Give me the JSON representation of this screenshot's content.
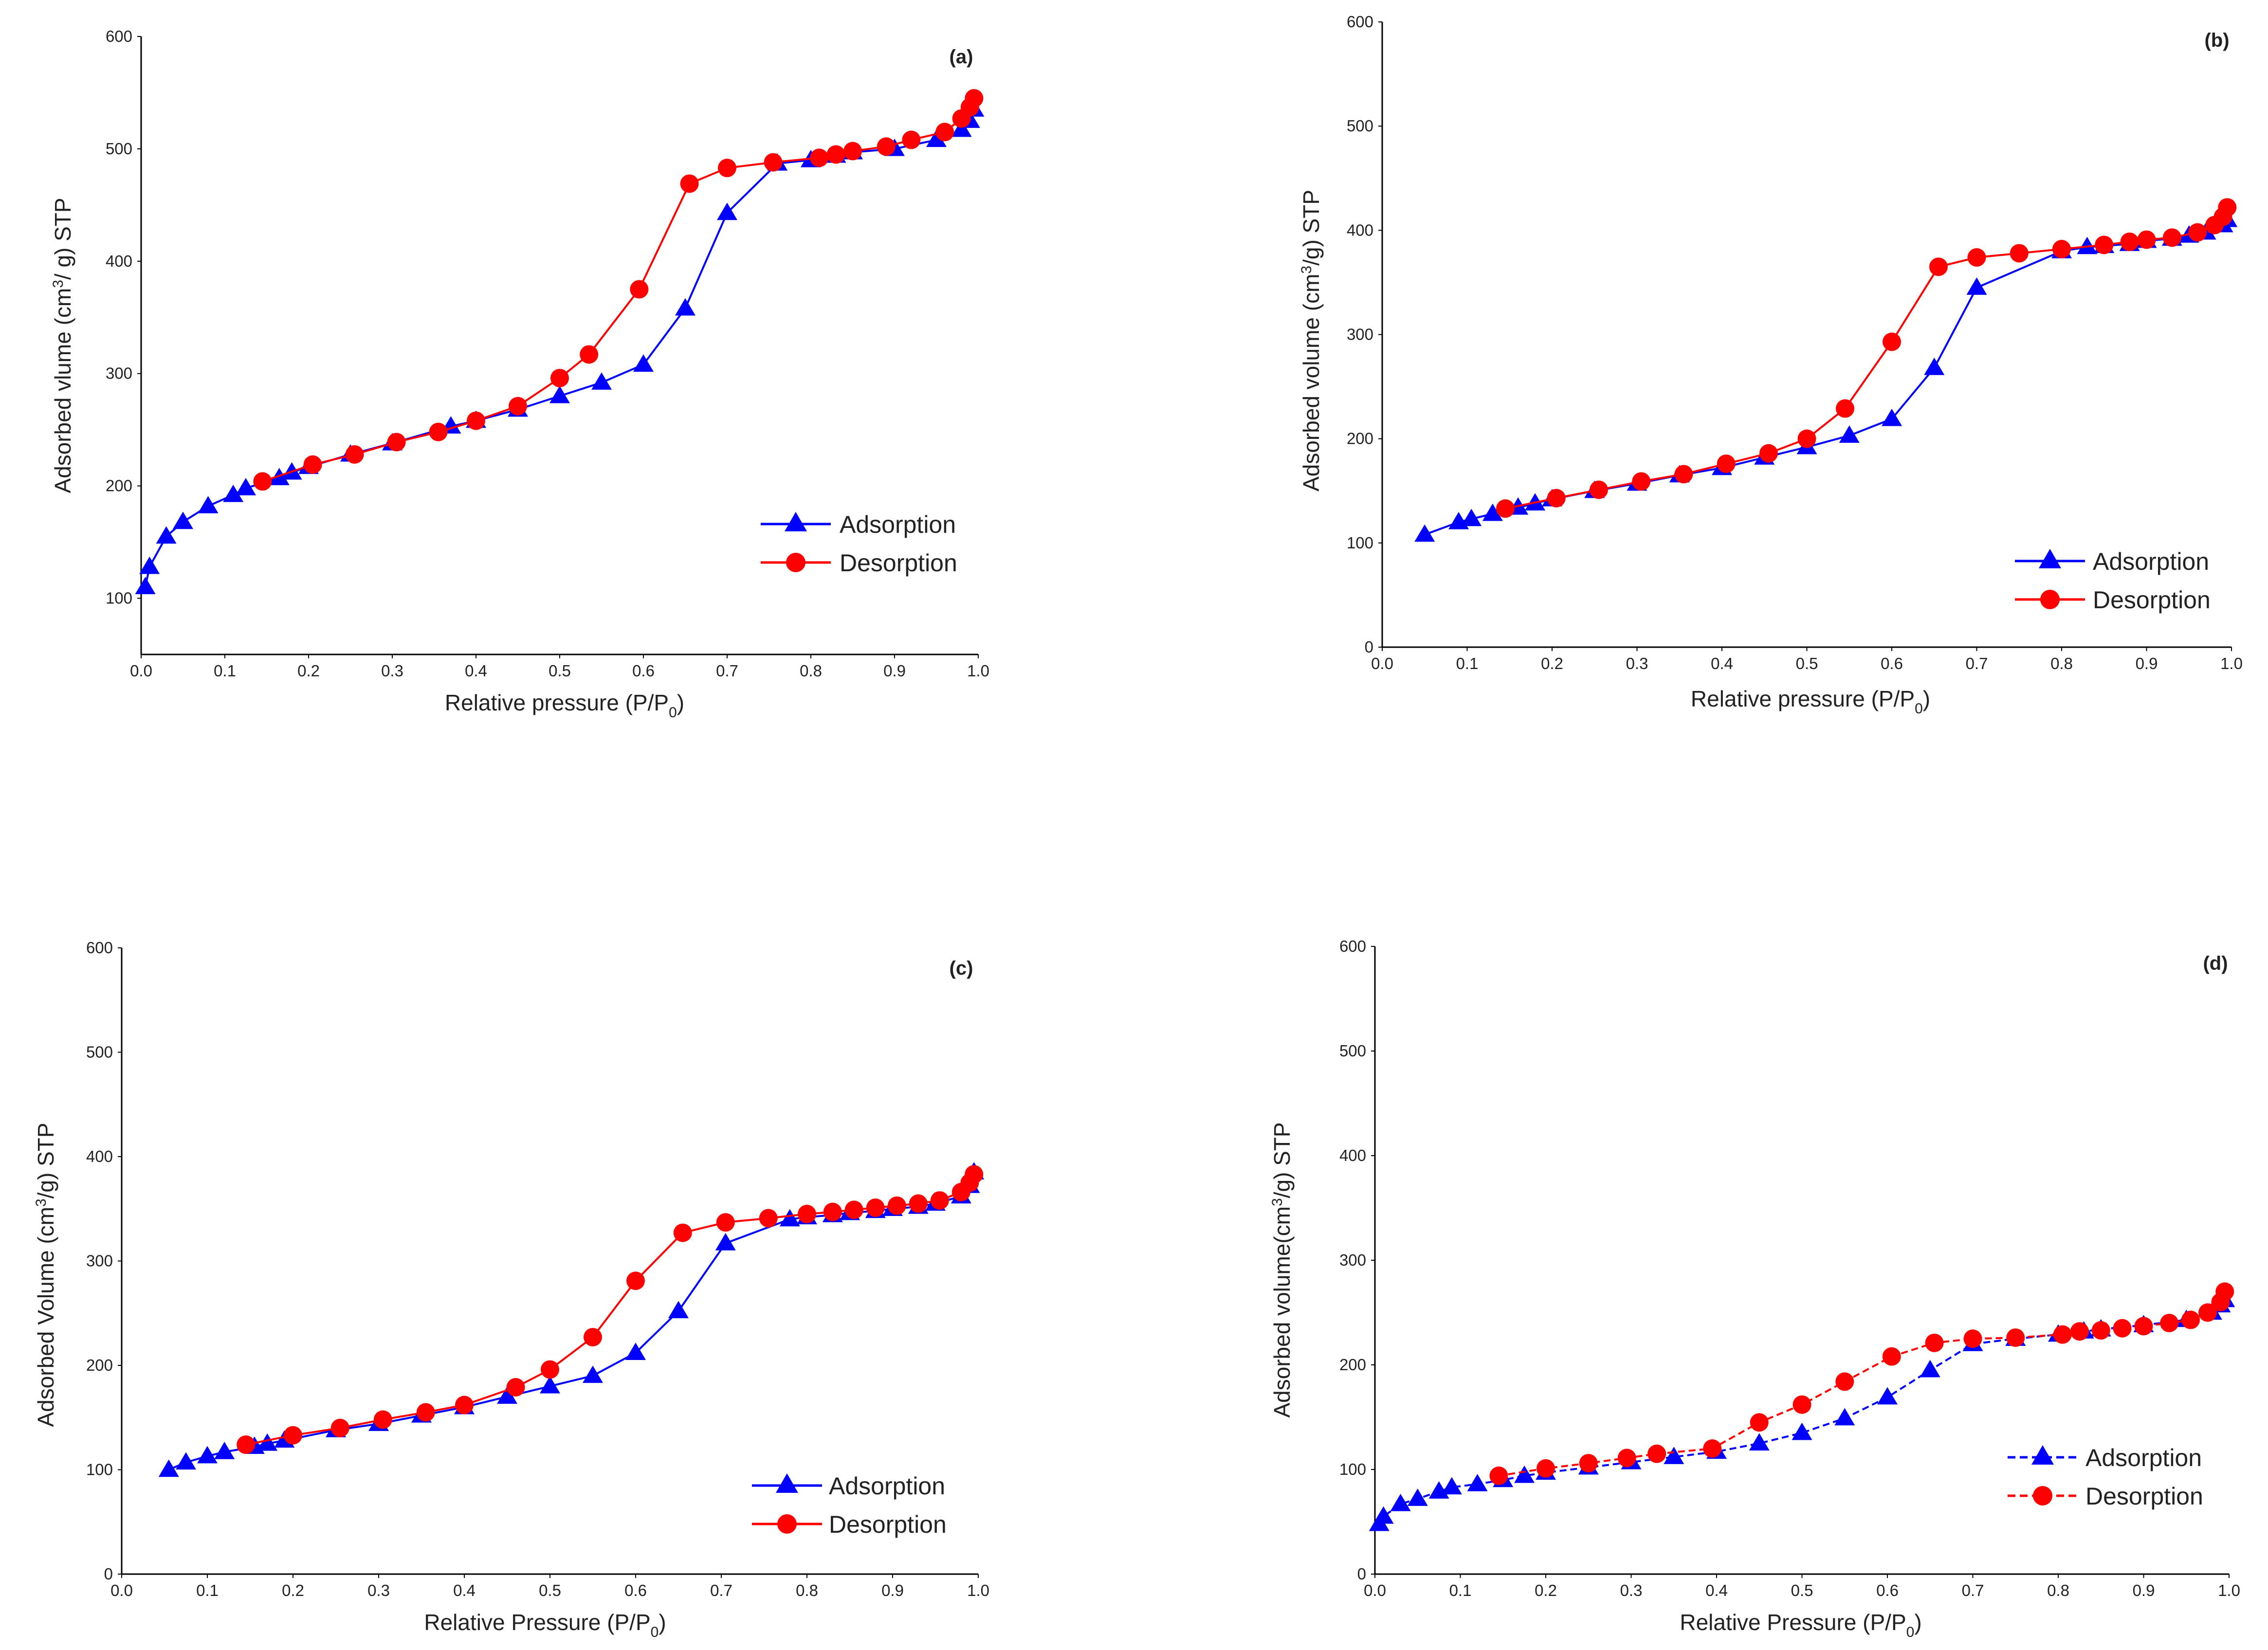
{
  "colors": {
    "adsorption": "#0000ff",
    "desorption": "#ff0000",
    "axis": "#000000"
  },
  "chart_data": [
    {
      "type": "line",
      "panel_label": "(a)",
      "xlabel": "Relative pressure (P/P",
      "xlabel_sub": "0",
      "xlabel_close": ")",
      "ylabel": "Adsorbed vlume (cm",
      "ylabel_sup": "3",
      "ylabel_rest": "/ g) STP",
      "xlim": [
        0,
        1
      ],
      "ylim": [
        50,
        600
      ],
      "xticks": [
        "0.0",
        "0.1",
        "0.2",
        "0.3",
        "0.4",
        "0.5",
        "0.6",
        "0.7",
        "0.8",
        "0.9",
        "1.0"
      ],
      "yticks": [
        "100",
        "200",
        "300",
        "400",
        "500",
        "600"
      ],
      "legend_position": "lower-right",
      "series": [
        {
          "name": "Adsorption",
          "marker": "triangle",
          "x": [
            0.005,
            0.01,
            0.03,
            0.05,
            0.08,
            0.11,
            0.125,
            0.165,
            0.18,
            0.2,
            0.25,
            0.3,
            0.37,
            0.4,
            0.45,
            0.5,
            0.55,
            0.6,
            0.65,
            0.7,
            0.76,
            0.8,
            0.83,
            0.85,
            0.9,
            0.95,
            0.98,
            0.99,
            0.995
          ],
          "y": [
            110,
            128,
            155,
            168,
            182,
            192,
            198,
            207,
            212,
            217,
            228,
            238,
            253,
            258,
            268,
            280,
            292,
            308,
            358,
            443,
            487,
            490,
            494,
            497,
            500,
            508,
            517,
            525,
            535
          ]
        },
        {
          "name": "Desorption",
          "marker": "circle",
          "x": [
            0.995,
            0.99,
            0.98,
            0.96,
            0.92,
            0.89,
            0.85,
            0.83,
            0.81,
            0.755,
            0.7,
            0.655,
            0.595,
            0.535,
            0.5,
            0.45,
            0.4,
            0.355,
            0.305,
            0.255,
            0.205,
            0.145
          ],
          "y": [
            545,
            537,
            527,
            515,
            508,
            502,
            498,
            495,
            492,
            488,
            483,
            469,
            375,
            317,
            296,
            271,
            258,
            248,
            239,
            228,
            219,
            204
          ]
        }
      ]
    },
    {
      "type": "line",
      "panel_label": "(b)",
      "xlabel": "Relative pressure (P/P",
      "xlabel_sub": "0",
      "xlabel_close": ")",
      "ylabel": "Adsorbed volume (cm",
      "ylabel_sup": "3",
      "ylabel_rest": "/g) STP",
      "xlim": [
        0,
        1
      ],
      "ylim": [
        0,
        600
      ],
      "xticks": [
        "0.0",
        "0.1",
        "0.2",
        "0.3",
        "0.4",
        "0.5",
        "0.6",
        "0.7",
        "0.8",
        "0.9",
        "1.0"
      ],
      "yticks": [
        "0",
        "100",
        "200",
        "300",
        "400",
        "500",
        "600"
      ],
      "legend_position": "lower-right",
      "series": [
        {
          "name": "Adsorption",
          "marker": "triangle",
          "x": [
            0.05,
            0.09,
            0.105,
            0.13,
            0.16,
            0.18,
            0.2,
            0.25,
            0.3,
            0.35,
            0.4,
            0.45,
            0.5,
            0.55,
            0.6,
            0.65,
            0.7,
            0.8,
            0.83,
            0.85,
            0.88,
            0.9,
            0.93,
            0.95,
            0.97,
            0.99,
            0.995
          ],
          "y": [
            108,
            120,
            123,
            128,
            134,
            138,
            142,
            150,
            157,
            165,
            172,
            182,
            192,
            203,
            219,
            268,
            345,
            380,
            384,
            385,
            387,
            390,
            392,
            395,
            398,
            405,
            410
          ]
        },
        {
          "name": "Desorption",
          "marker": "circle",
          "x": [
            0.995,
            0.99,
            0.98,
            0.96,
            0.93,
            0.9,
            0.88,
            0.85,
            0.8,
            0.75,
            0.7,
            0.655,
            0.6,
            0.545,
            0.5,
            0.455,
            0.405,
            0.355,
            0.305,
            0.255,
            0.205,
            0.145
          ],
          "y": [
            422,
            413,
            405,
            398,
            393,
            391,
            389,
            386,
            382,
            378,
            374,
            365,
            293,
            229,
            200,
            186,
            176,
            166,
            159,
            151,
            143,
            133
          ]
        }
      ]
    },
    {
      "type": "line",
      "panel_label": "(c)",
      "xlabel": "Relative Pressure (P/P",
      "xlabel_sub": "0",
      "xlabel_close": ")",
      "ylabel": "Adsorbed Volume (cm",
      "ylabel_sup": "3",
      "ylabel_rest": "/g) STP",
      "xlim": [
        0,
        1
      ],
      "ylim": [
        0,
        600
      ],
      "xticks": [
        "0.0",
        "0.1",
        "0.2",
        "0.3",
        "0.4",
        "0.5",
        "0.6",
        "0.7",
        "0.8",
        "0.9",
        "1.0"
      ],
      "yticks": [
        "0",
        "100",
        "200",
        "300",
        "400",
        "500",
        "600"
      ],
      "legend_position": "lower-right",
      "series": [
        {
          "name": "Adsorption",
          "marker": "triangle",
          "x": [
            0.055,
            0.075,
            0.1,
            0.12,
            0.155,
            0.17,
            0.19,
            0.25,
            0.3,
            0.35,
            0.4,
            0.45,
            0.5,
            0.55,
            0.6,
            0.65,
            0.705,
            0.78,
            0.8,
            0.83,
            0.85,
            0.88,
            0.9,
            0.93,
            0.95,
            0.98,
            0.99,
            0.995
          ],
          "y": [
            100,
            107,
            113,
            117,
            122,
            125,
            128,
            138,
            144,
            152,
            160,
            170,
            180,
            190,
            212,
            252,
            317,
            340,
            342,
            344,
            346,
            348,
            350,
            352,
            355,
            362,
            372,
            385
          ]
        },
        {
          "name": "Desorption",
          "marker": "circle",
          "x": [
            0.995,
            0.99,
            0.98,
            0.955,
            0.93,
            0.905,
            0.88,
            0.855,
            0.83,
            0.8,
            0.755,
            0.705,
            0.655,
            0.6,
            0.55,
            0.5,
            0.46,
            0.4,
            0.355,
            0.305,
            0.255,
            0.2,
            0.145
          ],
          "y": [
            383,
            375,
            366,
            358,
            355,
            353,
            351,
            349,
            347,
            345,
            341,
            337,
            327,
            281,
            227,
            196,
            179,
            162,
            155,
            148,
            140,
            133,
            124
          ]
        }
      ]
    },
    {
      "type": "line",
      "panel_label": "(d)",
      "xlabel": "Relative Pressure (P/P",
      "xlabel_sub": "0",
      "xlabel_close": ")",
      "ylabel": "Adsorbed volume(cm",
      "ylabel_sup": "3",
      "ylabel_rest": "/g) STP",
      "xlim": [
        0,
        1
      ],
      "ylim": [
        0,
        600
      ],
      "xticks": [
        "0.0",
        "0.1",
        "0.2",
        "0.3",
        "0.4",
        "0.5",
        "0.6",
        "0.7",
        "0.8",
        "0.9",
        "1.0"
      ],
      "yticks": [
        "0",
        "100",
        "200",
        "300",
        "400",
        "500",
        "600"
      ],
      "legend_position": "lower-right",
      "series": [
        {
          "name": "Adsorption",
          "marker": "triangle",
          "x": [
            0.005,
            0.01,
            0.03,
            0.05,
            0.075,
            0.09,
            0.12,
            0.15,
            0.175,
            0.2,
            0.25,
            0.3,
            0.35,
            0.4,
            0.45,
            0.5,
            0.55,
            0.6,
            0.65,
            0.7,
            0.75,
            0.8,
            0.83,
            0.85,
            0.9,
            0.95,
            0.98,
            0.99,
            0.995
          ],
          "y": [
            48,
            55,
            67,
            72,
            79,
            83,
            86,
            90,
            94,
            97,
            102,
            107,
            112,
            117,
            125,
            135,
            149,
            169,
            195,
            220,
            225,
            229,
            232,
            234,
            238,
            243,
            250,
            257,
            262
          ]
        },
        {
          "name": "Desorption",
          "marker": "circle",
          "x": [
            0.995,
            0.99,
            0.975,
            0.955,
            0.93,
            0.9,
            0.875,
            0.85,
            0.825,
            0.805,
            0.75,
            0.7,
            0.655,
            0.605,
            0.55,
            0.5,
            0.45,
            0.395,
            0.33,
            0.295,
            0.25,
            0.2,
            0.145
          ],
          "y": [
            270,
            260,
            250,
            243,
            240,
            237,
            235,
            233,
            232,
            229,
            226,
            225,
            221,
            208,
            184,
            162,
            145,
            120,
            115,
            111,
            106,
            101,
            94
          ]
        }
      ]
    }
  ]
}
